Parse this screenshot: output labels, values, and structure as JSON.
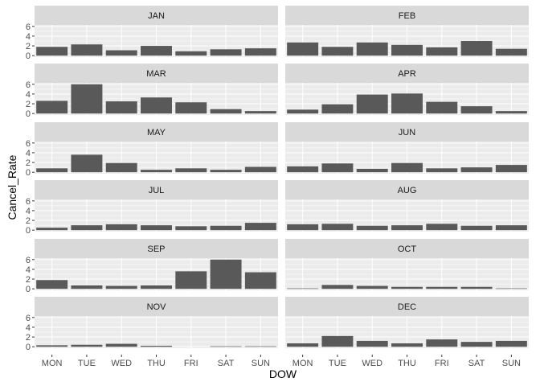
{
  "chart_data": {
    "type": "bar",
    "xlabel": "DOW",
    "ylabel": "Cancel_Rate",
    "categories": [
      "MON",
      "TUE",
      "WED",
      "THU",
      "FRI",
      "SAT",
      "SUN"
    ],
    "y_ticks": [
      0,
      2,
      4,
      6
    ],
    "ylim": [
      -0.3,
      6.3
    ],
    "facet_layout": "2 columns x 6 rows",
    "colors": {
      "bar": "#595959",
      "panel_bg": "#ebebeb",
      "strip_bg": "#d9d9d9",
      "grid": "#ffffff"
    },
    "panels": [
      {
        "label": "JAN",
        "values": [
          1.8,
          2.3,
          1.1,
          2.0,
          0.9,
          1.3,
          1.5
        ]
      },
      {
        "label": "FEB",
        "values": [
          2.7,
          1.8,
          2.7,
          2.2,
          1.7,
          3.0,
          1.4
        ]
      },
      {
        "label": "MAR",
        "values": [
          2.6,
          6.0,
          2.5,
          3.3,
          2.3,
          0.9,
          0.5
        ]
      },
      {
        "label": "APR",
        "values": [
          0.8,
          1.9,
          3.9,
          4.1,
          2.4,
          1.5,
          0.5
        ]
      },
      {
        "label": "MAY",
        "values": [
          0.8,
          3.6,
          1.9,
          0.5,
          0.8,
          0.5,
          1.1
        ]
      },
      {
        "label": "JUN",
        "values": [
          1.2,
          1.8,
          0.7,
          1.9,
          0.8,
          1.0,
          1.5
        ]
      },
      {
        "label": "JUL",
        "values": [
          0.5,
          1.0,
          1.2,
          1.0,
          0.8,
          0.9,
          1.5
        ]
      },
      {
        "label": "AUG",
        "values": [
          1.2,
          1.3,
          0.9,
          1.0,
          1.3,
          0.9,
          1.0
        ]
      },
      {
        "label": "SEP",
        "values": [
          1.8,
          0.7,
          0.6,
          0.7,
          3.6,
          6.0,
          3.4
        ]
      },
      {
        "label": "OCT",
        "values": [
          0.1,
          0.8,
          0.6,
          0.4,
          0.4,
          0.4,
          0.1
        ]
      },
      {
        "label": "NOV",
        "values": [
          0.3,
          0.4,
          0.6,
          0.2,
          0.0,
          0.1,
          0.1
        ]
      },
      {
        "label": "DEC",
        "values": [
          0.7,
          2.2,
          1.2,
          0.7,
          1.5,
          1.0,
          1.2
        ]
      }
    ]
  }
}
